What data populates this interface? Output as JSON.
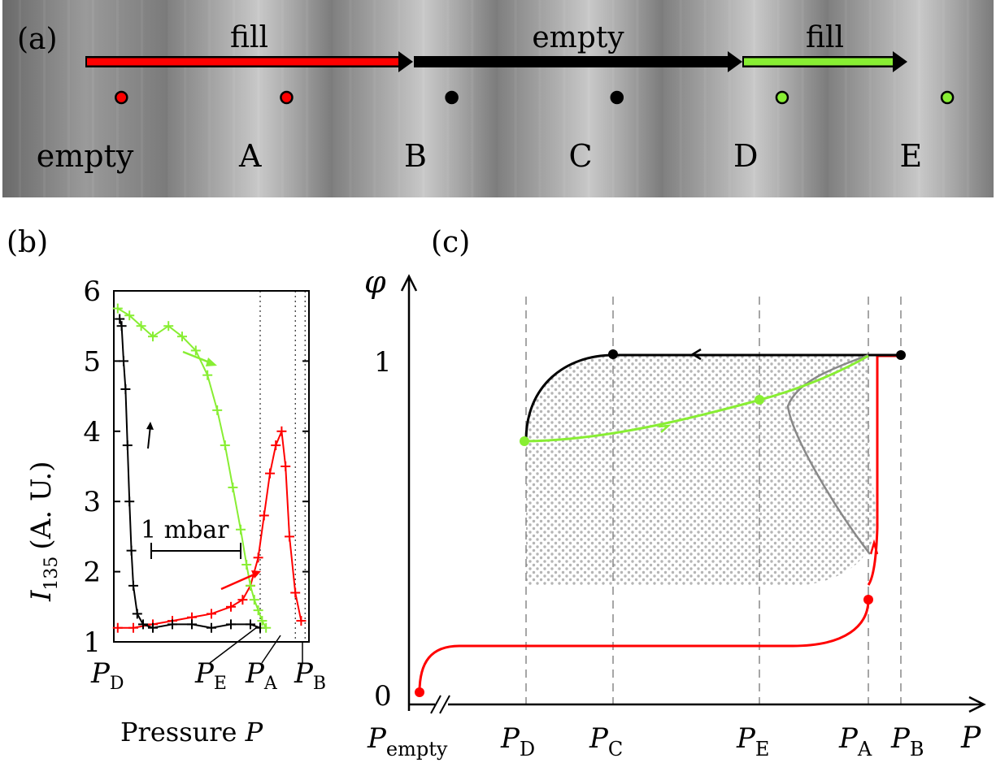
{
  "panel_a": {
    "label": "(a)",
    "frames": [
      "empty",
      "A",
      "B",
      "C",
      "D",
      "E"
    ],
    "arrows": [
      {
        "label": "fill",
        "color": "#ff0000"
      },
      {
        "label": "empty",
        "color": "#000000"
      },
      {
        "label": "fill",
        "color": "#88ee33"
      }
    ],
    "dot_colors": [
      "#ff0000",
      "#ff0000",
      "#000000",
      "#000000",
      "#88ee33",
      "#88ee33"
    ]
  },
  "panel_b": {
    "label": "(b)",
    "xlabel_text": "Pressure",
    "xlabel_var": "P",
    "ylabel_var": "I",
    "ylabel_sub": "135",
    "ylabel_unit": "(A. U.)",
    "scale_bar_label": "1 mbar",
    "x_ticks": [
      {
        "base": "P",
        "sub": "D"
      },
      {
        "base": "P",
        "sub": "E"
      },
      {
        "base": "P",
        "sub": "A"
      },
      {
        "base": "P",
        "sub": "B"
      }
    ]
  },
  "panel_c": {
    "label": "(c)",
    "ylabel": "φ",
    "xlabel": "P",
    "y_ticks": [
      "0",
      "1"
    ],
    "x_ticks": [
      {
        "base": "P",
        "sub": "empty"
      },
      {
        "base": "P",
        "sub": "D"
      },
      {
        "base": "P",
        "sub": "C"
      },
      {
        "base": "P",
        "sub": "E"
      },
      {
        "base": "P",
        "sub": "A"
      },
      {
        "base": "P",
        "sub": "B"
      }
    ]
  },
  "colors": {
    "fill": "#ff0000",
    "empty": "#000000",
    "refill": "#88ee33",
    "spinodal": "#888888"
  },
  "chart_data": [
    {
      "type": "scatter",
      "xlabel": "Pressure P",
      "ylabel": "I135 (A. U.)",
      "ylim": [
        1,
        6
      ],
      "y_ticks": [
        1,
        2,
        3,
        4,
        5,
        6
      ],
      "x_ticks": [
        "PD",
        "PE",
        "PA",
        "PB"
      ],
      "series": [
        {
          "color": "#ff0000",
          "x": [
            0.02,
            0.1,
            0.2,
            0.3,
            0.4,
            0.5,
            0.6,
            0.66,
            0.7,
            0.74,
            0.77,
            0.8,
            0.83,
            0.86,
            0.88,
            0.9,
            0.93,
            0.96
          ],
          "y": [
            1.2,
            1.2,
            1.25,
            1.3,
            1.35,
            1.4,
            1.5,
            1.6,
            1.8,
            2.2,
            2.8,
            3.4,
            3.8,
            4.0,
            3.5,
            2.5,
            1.7,
            1.3
          ]
        },
        {
          "color": "#000000",
          "x": [
            0.03,
            0.04,
            0.05,
            0.06,
            0.07,
            0.08,
            0.09,
            0.1,
            0.12,
            0.15,
            0.2,
            0.3,
            0.4,
            0.5,
            0.6,
            0.7,
            0.75
          ],
          "y": [
            5.6,
            5.5,
            5.0,
            4.6,
            3.8,
            3.0,
            2.3,
            1.8,
            1.4,
            1.25,
            1.2,
            1.25,
            1.25,
            1.2,
            1.25,
            1.25,
            1.2
          ]
        },
        {
          "color": "#88ee33",
          "x": [
            0.02,
            0.08,
            0.14,
            0.2,
            0.28,
            0.35,
            0.42,
            0.48,
            0.53,
            0.57,
            0.61,
            0.65,
            0.68,
            0.7,
            0.72,
            0.74,
            0.76,
            0.78
          ],
          "y": [
            5.75,
            5.65,
            5.5,
            5.35,
            5.5,
            5.35,
            5.15,
            4.8,
            4.3,
            3.8,
            3.2,
            2.6,
            2.1,
            1.8,
            1.6,
            1.45,
            1.3,
            1.2
          ]
        }
      ]
    },
    {
      "type": "line",
      "xlabel": "P",
      "ylabel": "φ",
      "y_ticks": [
        0,
        1
      ],
      "x_ticks": [
        "Pempty",
        "PD",
        "PC",
        "PE",
        "PA",
        "PB"
      ],
      "markers": [
        {
          "at": "Pempty",
          "y": 0.0,
          "color": "#ff0000"
        },
        {
          "at": "PA",
          "y": 0.3,
          "color": "#ff0000"
        },
        {
          "at": "PB",
          "y": 1.0,
          "color": "#000000"
        },
        {
          "at": "PC",
          "y": 1.0,
          "color": "#000000"
        },
        {
          "at": "PD",
          "y": 0.75,
          "color": "#88ee33"
        },
        {
          "at": "PE",
          "y": 0.85,
          "color": "#88ee33"
        }
      ]
    }
  ]
}
